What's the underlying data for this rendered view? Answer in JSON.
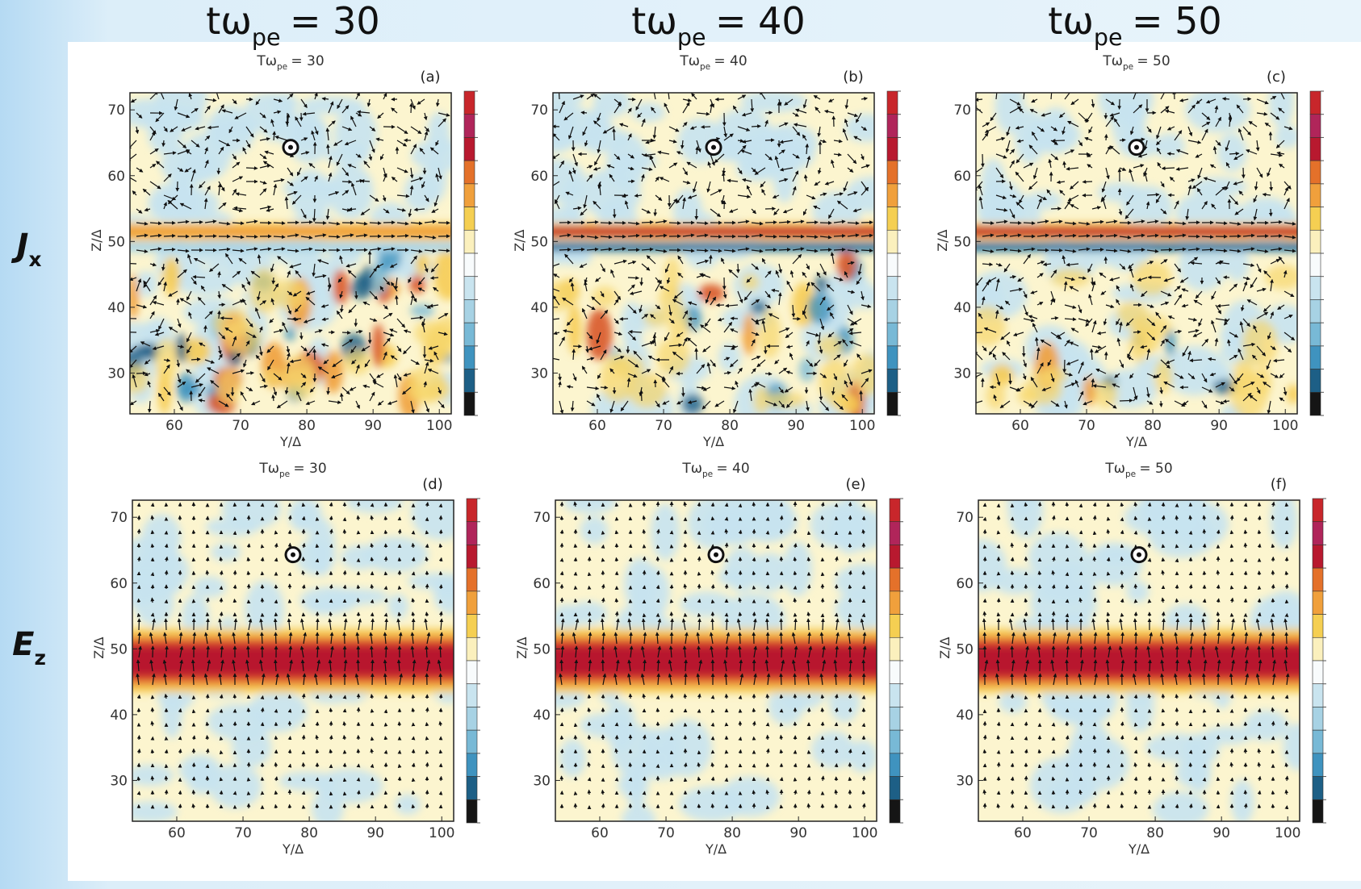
{
  "header": {
    "columns": [
      {
        "main": "tω",
        "sub": "pe",
        "rest": "= 30"
      },
      {
        "main": "tω",
        "sub": "pe",
        "rest": "= 40"
      },
      {
        "main": "tω",
        "sub": "pe",
        "rest": "= 50"
      }
    ],
    "rows": [
      {
        "main": "J",
        "sub": "x"
      },
      {
        "main": "E",
        "sub": "z"
      }
    ]
  },
  "chart_data": [
    {
      "type": "heatmap",
      "panel": "(a)",
      "title": {
        "main": "Tω",
        "sub": "pe",
        "rest": "= 30"
      },
      "x_label": "Y/Δ",
      "y_label": "Z/Δ",
      "xlim": [
        53.3,
        101.8
      ],
      "ylim": [
        23.8,
        72.6
      ],
      "xticks": [
        60,
        70,
        80,
        90,
        100
      ],
      "yticks": [
        30,
        40,
        50,
        60,
        70
      ]
    },
    {
      "type": "heatmap",
      "panel": "(b)",
      "title": {
        "main": "Tω",
        "sub": "pe",
        "rest": "= 40"
      },
      "x_label": "Y/Δ",
      "y_label": "Z/Δ",
      "xlim": [
        53.3,
        101.8
      ],
      "ylim": [
        23.8,
        72.6
      ],
      "xticks": [
        60,
        70,
        80,
        90,
        100
      ],
      "yticks": [
        30,
        40,
        50,
        60,
        70
      ]
    },
    {
      "type": "heatmap",
      "panel": "(c)",
      "title": {
        "main": "Tω",
        "sub": "pe",
        "rest": "= 50"
      },
      "x_label": "Y/Δ",
      "y_label": "Z/Δ",
      "xlim": [
        53.3,
        101.8
      ],
      "ylim": [
        23.8,
        72.6
      ],
      "xticks": [
        60,
        70,
        80,
        90,
        100
      ],
      "yticks": [
        30,
        40,
        50,
        60,
        70
      ]
    },
    {
      "type": "heatmap",
      "panel": "(d)",
      "title": {
        "main": "Tω",
        "sub": "pe",
        "rest": "= 30"
      },
      "x_label": "Y/Δ",
      "y_label": "Z/Δ",
      "xlim": [
        53.3,
        101.8
      ],
      "ylim": [
        23.8,
        72.6
      ],
      "xticks": [
        60,
        70,
        80,
        90,
        100
      ],
      "yticks": [
        30,
        40,
        50,
        60,
        70
      ]
    },
    {
      "type": "heatmap",
      "panel": "(e)",
      "title": {
        "main": "Tω",
        "sub": "pe",
        "rest": "= 40"
      },
      "x_label": "Y/Δ",
      "y_label": "Z/Δ",
      "xlim": [
        53.3,
        101.8
      ],
      "ylim": [
        23.8,
        72.6
      ],
      "xticks": [
        60,
        70,
        80,
        90,
        100
      ],
      "yticks": [
        30,
        40,
        50,
        60,
        70
      ]
    },
    {
      "type": "heatmap",
      "panel": "(f)",
      "title": {
        "main": "Tω",
        "sub": "pe",
        "rest": "= 50"
      },
      "x_label": "Y/Δ",
      "y_label": "Z/Δ",
      "xlim": [
        53.3,
        101.8
      ],
      "ylim": [
        23.8,
        72.6
      ],
      "xticks": [
        60,
        70,
        80,
        90,
        100
      ],
      "yticks": [
        30,
        40,
        50,
        60,
        70
      ]
    }
  ]
}
